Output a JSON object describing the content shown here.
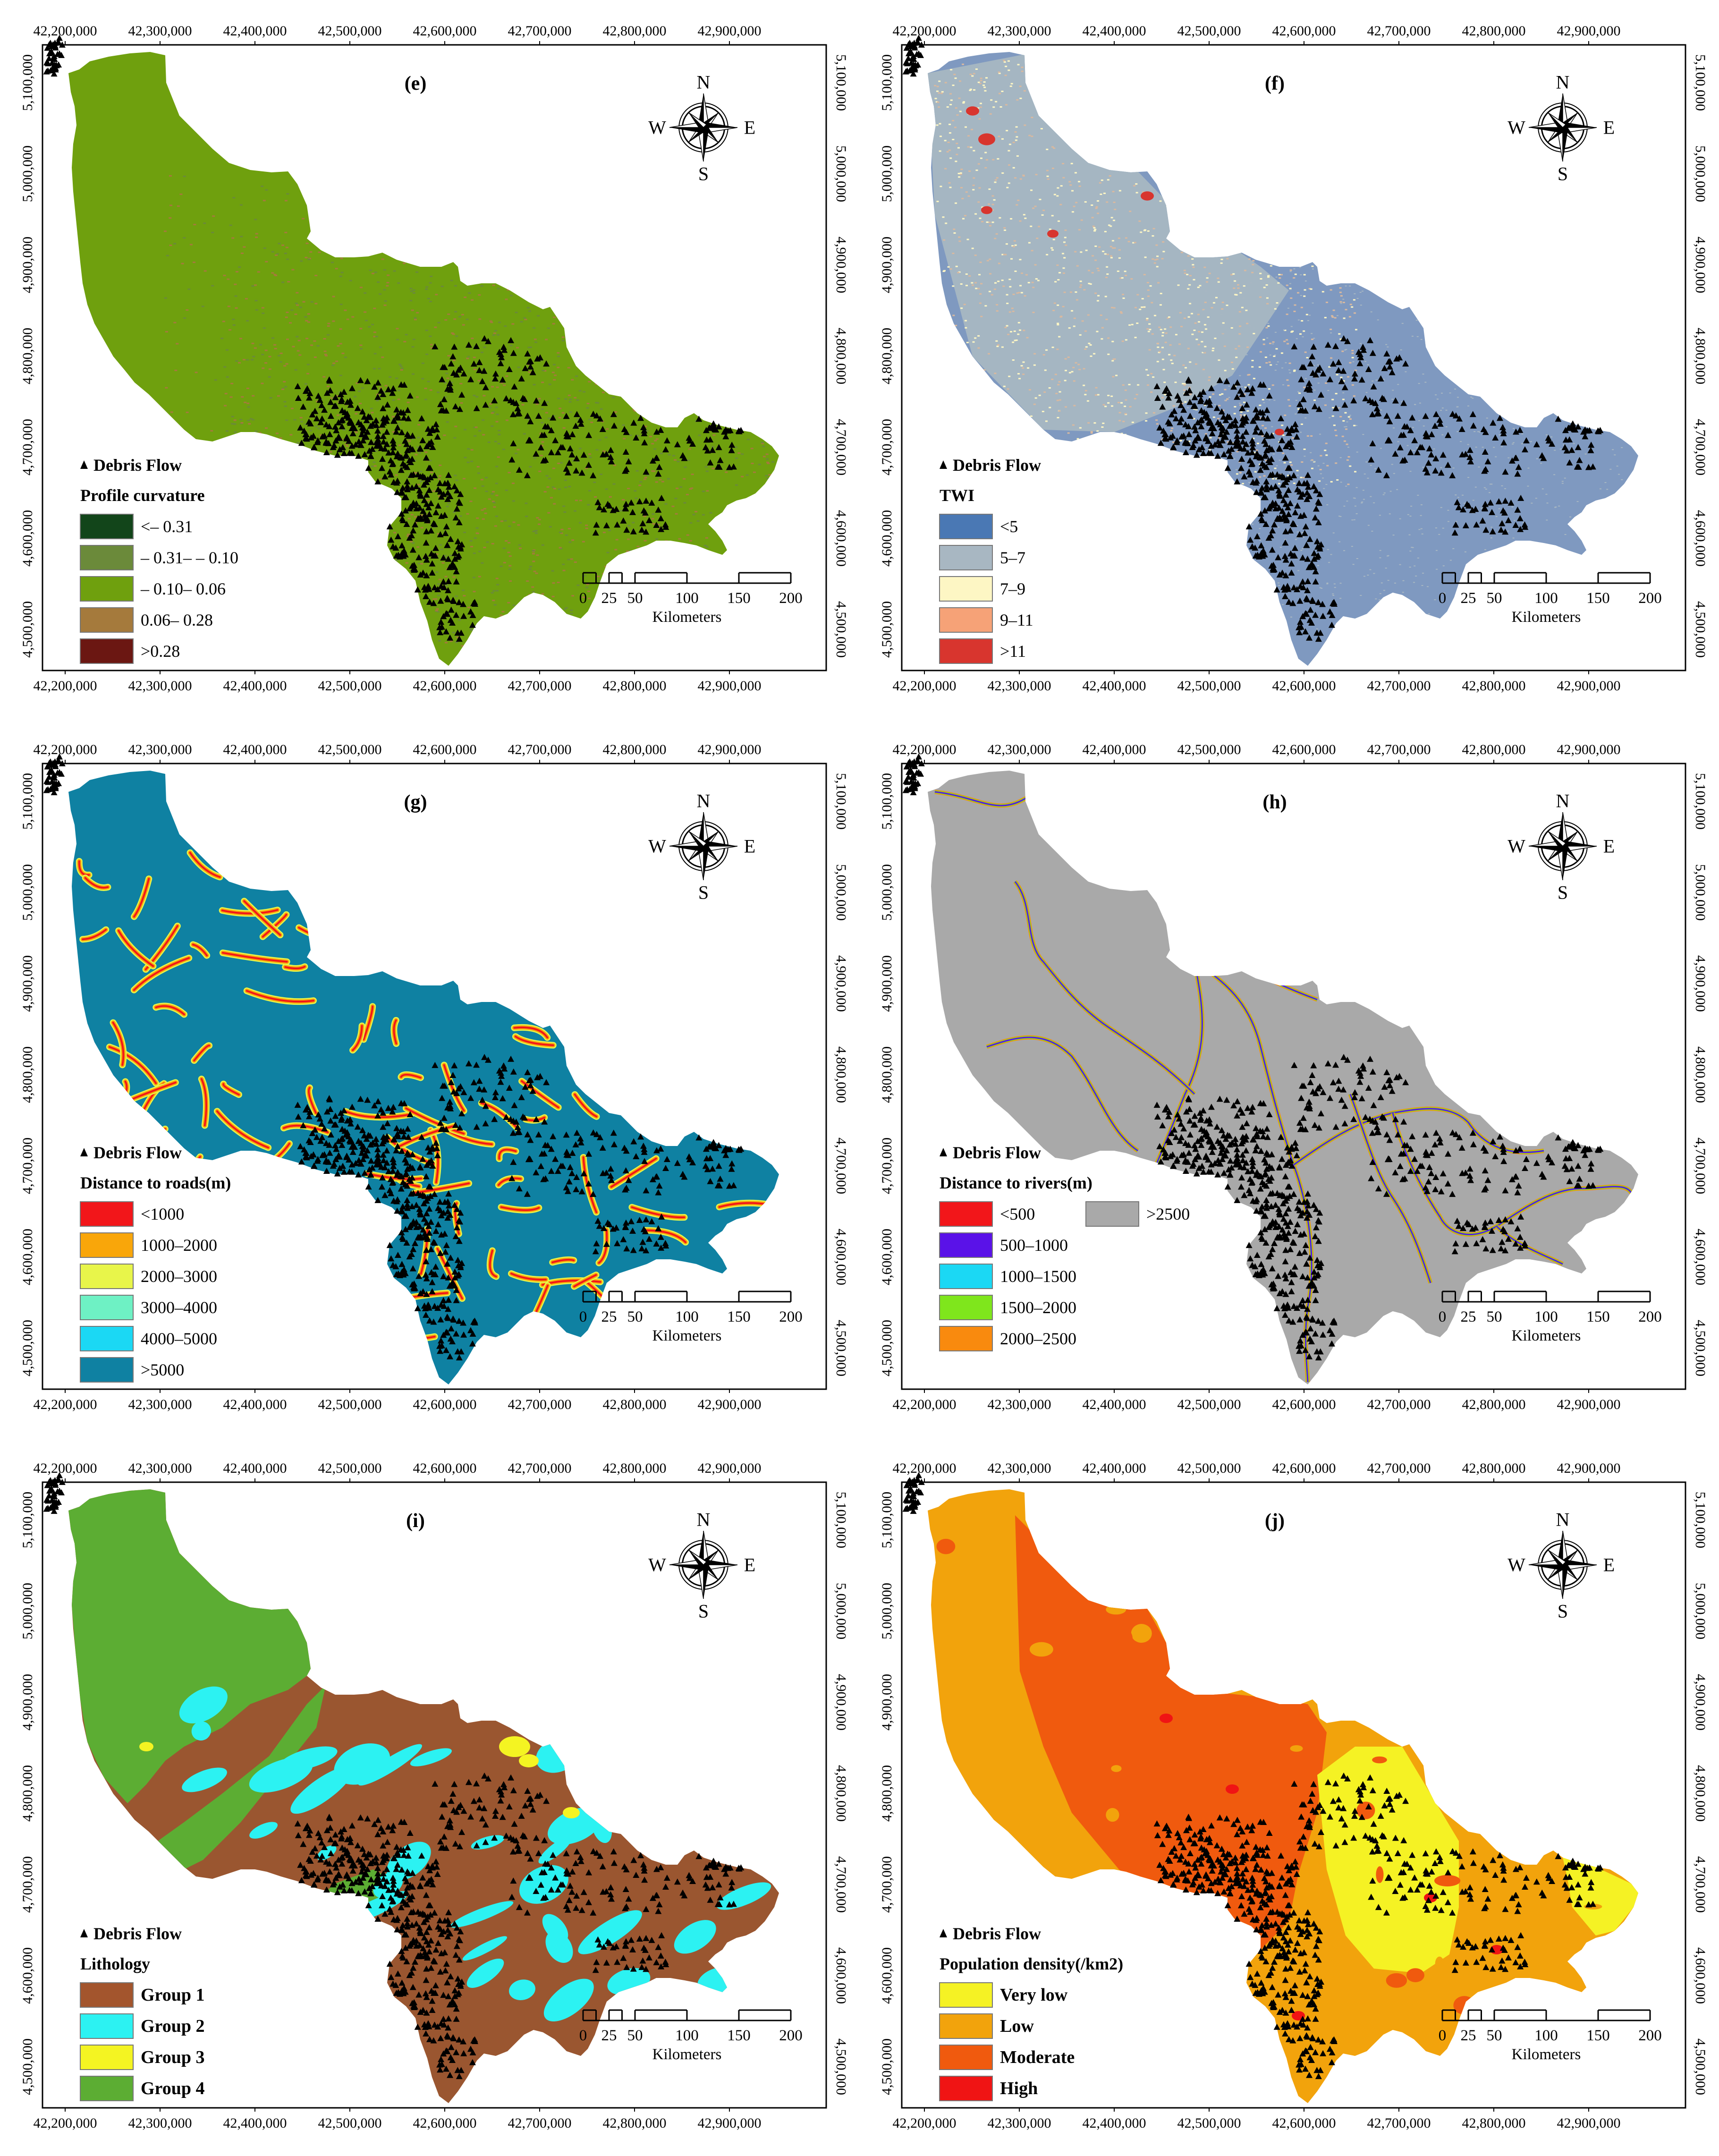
{
  "panels": [
    {
      "id": "e",
      "letter": "(e)",
      "debris_label": "Debris Flow",
      "legend_title": "Profile curvature",
      "base_color": "#6fa00e",
      "overlay": "stipple-brown",
      "legend": [
        {
          "color": "#12451a",
          "label": "<– 0.31"
        },
        {
          "color": "#6b8a3a",
          "label": "– 0.31– – 0.10"
        },
        {
          "color": "#6fa00e",
          "label": "– 0.10– 0.06"
        },
        {
          "color": "#a57a3c",
          "label": "0.06– 0.28"
        },
        {
          "color": "#6b1712",
          "label": ">0.28"
        }
      ]
    },
    {
      "id": "f",
      "letter": "(f)",
      "debris_label": "Debris Flow",
      "legend_title": "TWI",
      "base_color": "#7f99c0",
      "overlay": "twi",
      "legend": [
        {
          "color": "#4a78b4",
          "label": "<5"
        },
        {
          "color": "#a8b7c2",
          "label": "5–7"
        },
        {
          "color": "#fdf6c4",
          "label": "7–9"
        },
        {
          "color": "#f6a277",
          "label": "9–11"
        },
        {
          "color": "#d8352e",
          "label": ">11"
        }
      ]
    },
    {
      "id": "g",
      "letter": "(g)",
      "debris_label": "Debris Flow",
      "legend_title": "Distance to roads(m)",
      "base_color": "#0f81a2",
      "overlay": "roads",
      "legend": [
        {
          "color": "#f2161a",
          "label": "<1000"
        },
        {
          "color": "#f9a60a",
          "label": "1000–2000"
        },
        {
          "color": "#e8f54a",
          "label": "2000–3000"
        },
        {
          "color": "#6ef1c4",
          "label": "3000–4000"
        },
        {
          "color": "#1bd8f4",
          "label": "4000–5000"
        },
        {
          "color": "#0f81a2",
          "label": ">5000"
        }
      ]
    },
    {
      "id": "h",
      "letter": "(h)",
      "debris_label": "Debris Flow",
      "legend_title": "Distance to rivers(m)",
      "base_color": "#a9a9a9",
      "overlay": "rivers",
      "legend": [
        {
          "color": "#f2161a",
          "label": "<500"
        },
        {
          "color": "#5a12e8",
          "label": "500–1000"
        },
        {
          "color": "#1bd8f4",
          "label": "1000–1500"
        },
        {
          "color": "#7fe61c",
          "label": "1500–2000"
        },
        {
          "color": "#f98a0e",
          "label": "2000–2500"
        },
        {
          "color": "#a9a9a9",
          "label": ">2500"
        }
      ]
    },
    {
      "id": "i",
      "letter": "(i)",
      "debris_label": "Debris Flow",
      "legend_title": "Lithology",
      "base_color": "#9a5630",
      "overlay": "lithology",
      "legend": [
        {
          "color": "#a3552d",
          "label": "Group 1"
        },
        {
          "color": "#2cf2f2",
          "label": "Group 2"
        },
        {
          "color": "#f4f422",
          "label": "Group 3"
        },
        {
          "color": "#5cad33",
          "label": "Group 4"
        }
      ]
    },
    {
      "id": "j",
      "letter": "(j)",
      "debris_label": "Debris Flow",
      "legend_title": "Population density(/km2)",
      "base_color": "#f2a30c",
      "overlay": "population",
      "legend": [
        {
          "color": "#f5f224",
          "label": "Very low"
        },
        {
          "color": "#f2a30c",
          "label": "Low"
        },
        {
          "color": "#f05a0e",
          "label": "Moderate"
        },
        {
          "color": "#f01414",
          "label": "High"
        }
      ]
    }
  ],
  "x_ticks": [
    "42,200,000",
    "42,300,000",
    "42,400,000",
    "42,500,000",
    "42,600,000",
    "42,700,000",
    "42,800,000",
    "42,900,000"
  ],
  "y_ticks": [
    "5,100,000",
    "5,000,000",
    "4,900,000",
    "4,800,000",
    "4,700,000",
    "4,600,000",
    "4,500,000"
  ],
  "compass": {
    "n": "N",
    "s": "S",
    "e": "E",
    "w": "W"
  },
  "scale": {
    "ticks": [
      "0",
      "25",
      "50",
      "100",
      "150",
      "200"
    ],
    "unit": "Kilometers"
  },
  "colors": {
    "debris_marker": "#000000",
    "frame": "#000000"
  }
}
